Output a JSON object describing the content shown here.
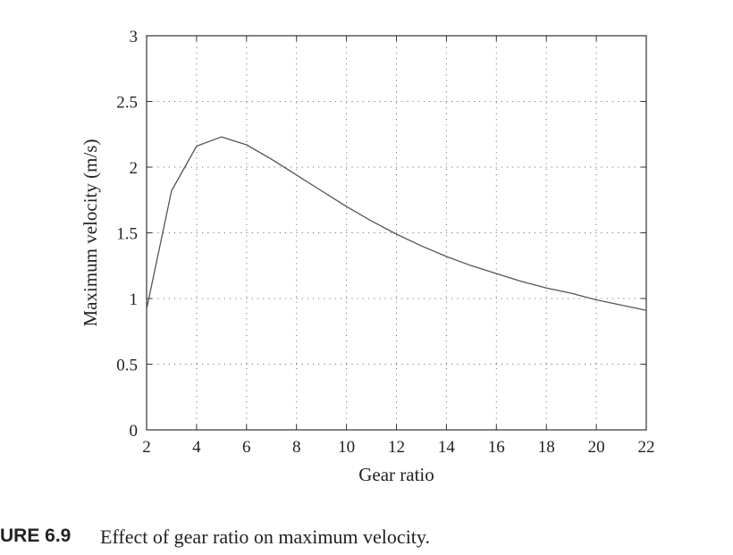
{
  "chart_data": {
    "type": "line",
    "xlabel": "Gear ratio",
    "ylabel": "Maximum velocity (m/s)",
    "xlim": [
      2,
      22
    ],
    "ylim": [
      0,
      3
    ],
    "xticks": [
      2,
      4,
      6,
      8,
      10,
      12,
      14,
      16,
      18,
      20,
      22
    ],
    "yticks": [
      0,
      0.5,
      1,
      1.5,
      2,
      2.5,
      3
    ],
    "xtick_labels": [
      "2",
      "4",
      "6",
      "8",
      "10",
      "12",
      "14",
      "16",
      "18",
      "20",
      "22"
    ],
    "ytick_labels": [
      "0",
      "0.5",
      "1",
      "1.5",
      "2",
      "2.5",
      "3"
    ],
    "grid": true,
    "series": [
      {
        "color": "#555555",
        "x": [
          2,
          3,
          4,
          5,
          6,
          7,
          8,
          9,
          10,
          11,
          12,
          13,
          14,
          15,
          16,
          17,
          18,
          19,
          20,
          21,
          22
        ],
        "y": [
          0.92,
          1.82,
          2.16,
          2.23,
          2.17,
          2.06,
          1.94,
          1.82,
          1.7,
          1.59,
          1.49,
          1.4,
          1.32,
          1.25,
          1.19,
          1.13,
          1.08,
          1.04,
          0.99,
          0.95,
          0.91
        ]
      }
    ]
  },
  "caption": {
    "label": "URE 6.9",
    "text": "Effect of gear ratio on maximum velocity."
  }
}
